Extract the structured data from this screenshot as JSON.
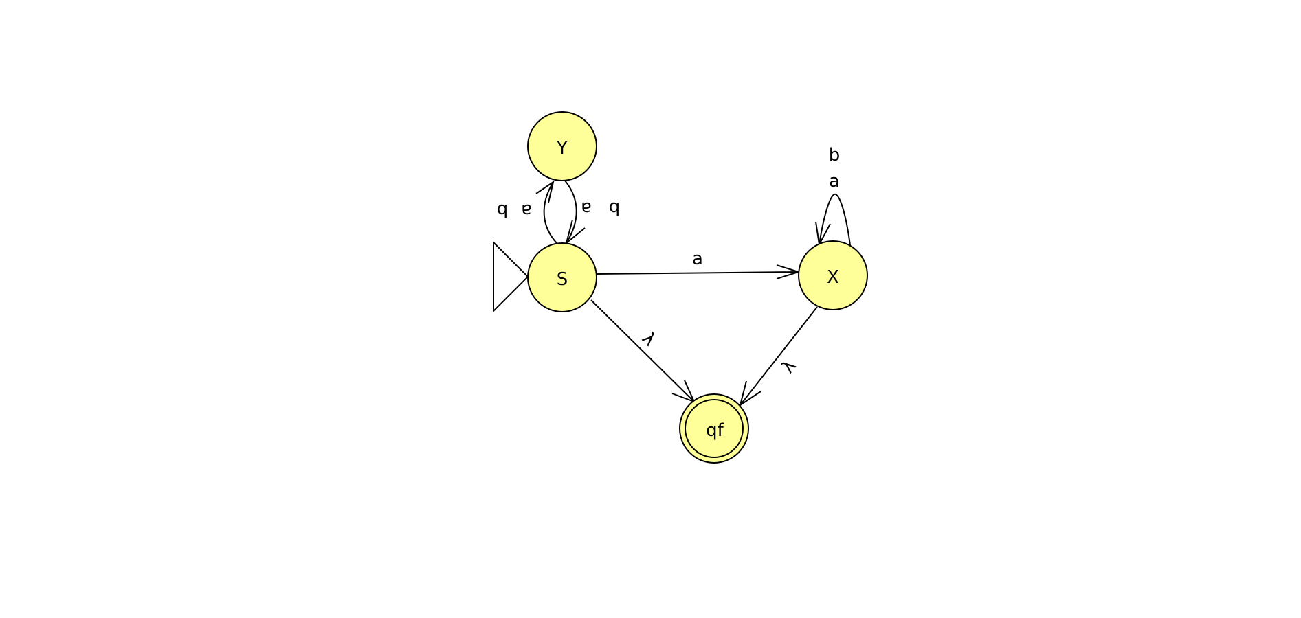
{
  "diagram": {
    "type": "finite-automaton",
    "colors": {
      "state_fill": "#ffff99",
      "stroke": "#000000",
      "background": "#ffffff"
    },
    "states": [
      {
        "id": "Y",
        "label": "Y",
        "initial": false,
        "final": false
      },
      {
        "id": "S",
        "label": "S",
        "initial": true,
        "final": false
      },
      {
        "id": "X",
        "label": "X",
        "initial": false,
        "final": false
      },
      {
        "id": "qf",
        "label": "qf",
        "initial": false,
        "final": true
      }
    ],
    "transitions": [
      {
        "from": "S",
        "to": "Y",
        "labels": [
          "a",
          "b"
        ]
      },
      {
        "from": "Y",
        "to": "S",
        "labels": [
          "a",
          "b"
        ]
      },
      {
        "from": "S",
        "to": "X",
        "labels": [
          "a"
        ]
      },
      {
        "from": "X",
        "to": "X",
        "labels": [
          "a",
          "b"
        ]
      },
      {
        "from": "S",
        "to": "qf",
        "labels": [
          "λ"
        ]
      },
      {
        "from": "X",
        "to": "qf",
        "labels": [
          "λ"
        ]
      }
    ]
  }
}
